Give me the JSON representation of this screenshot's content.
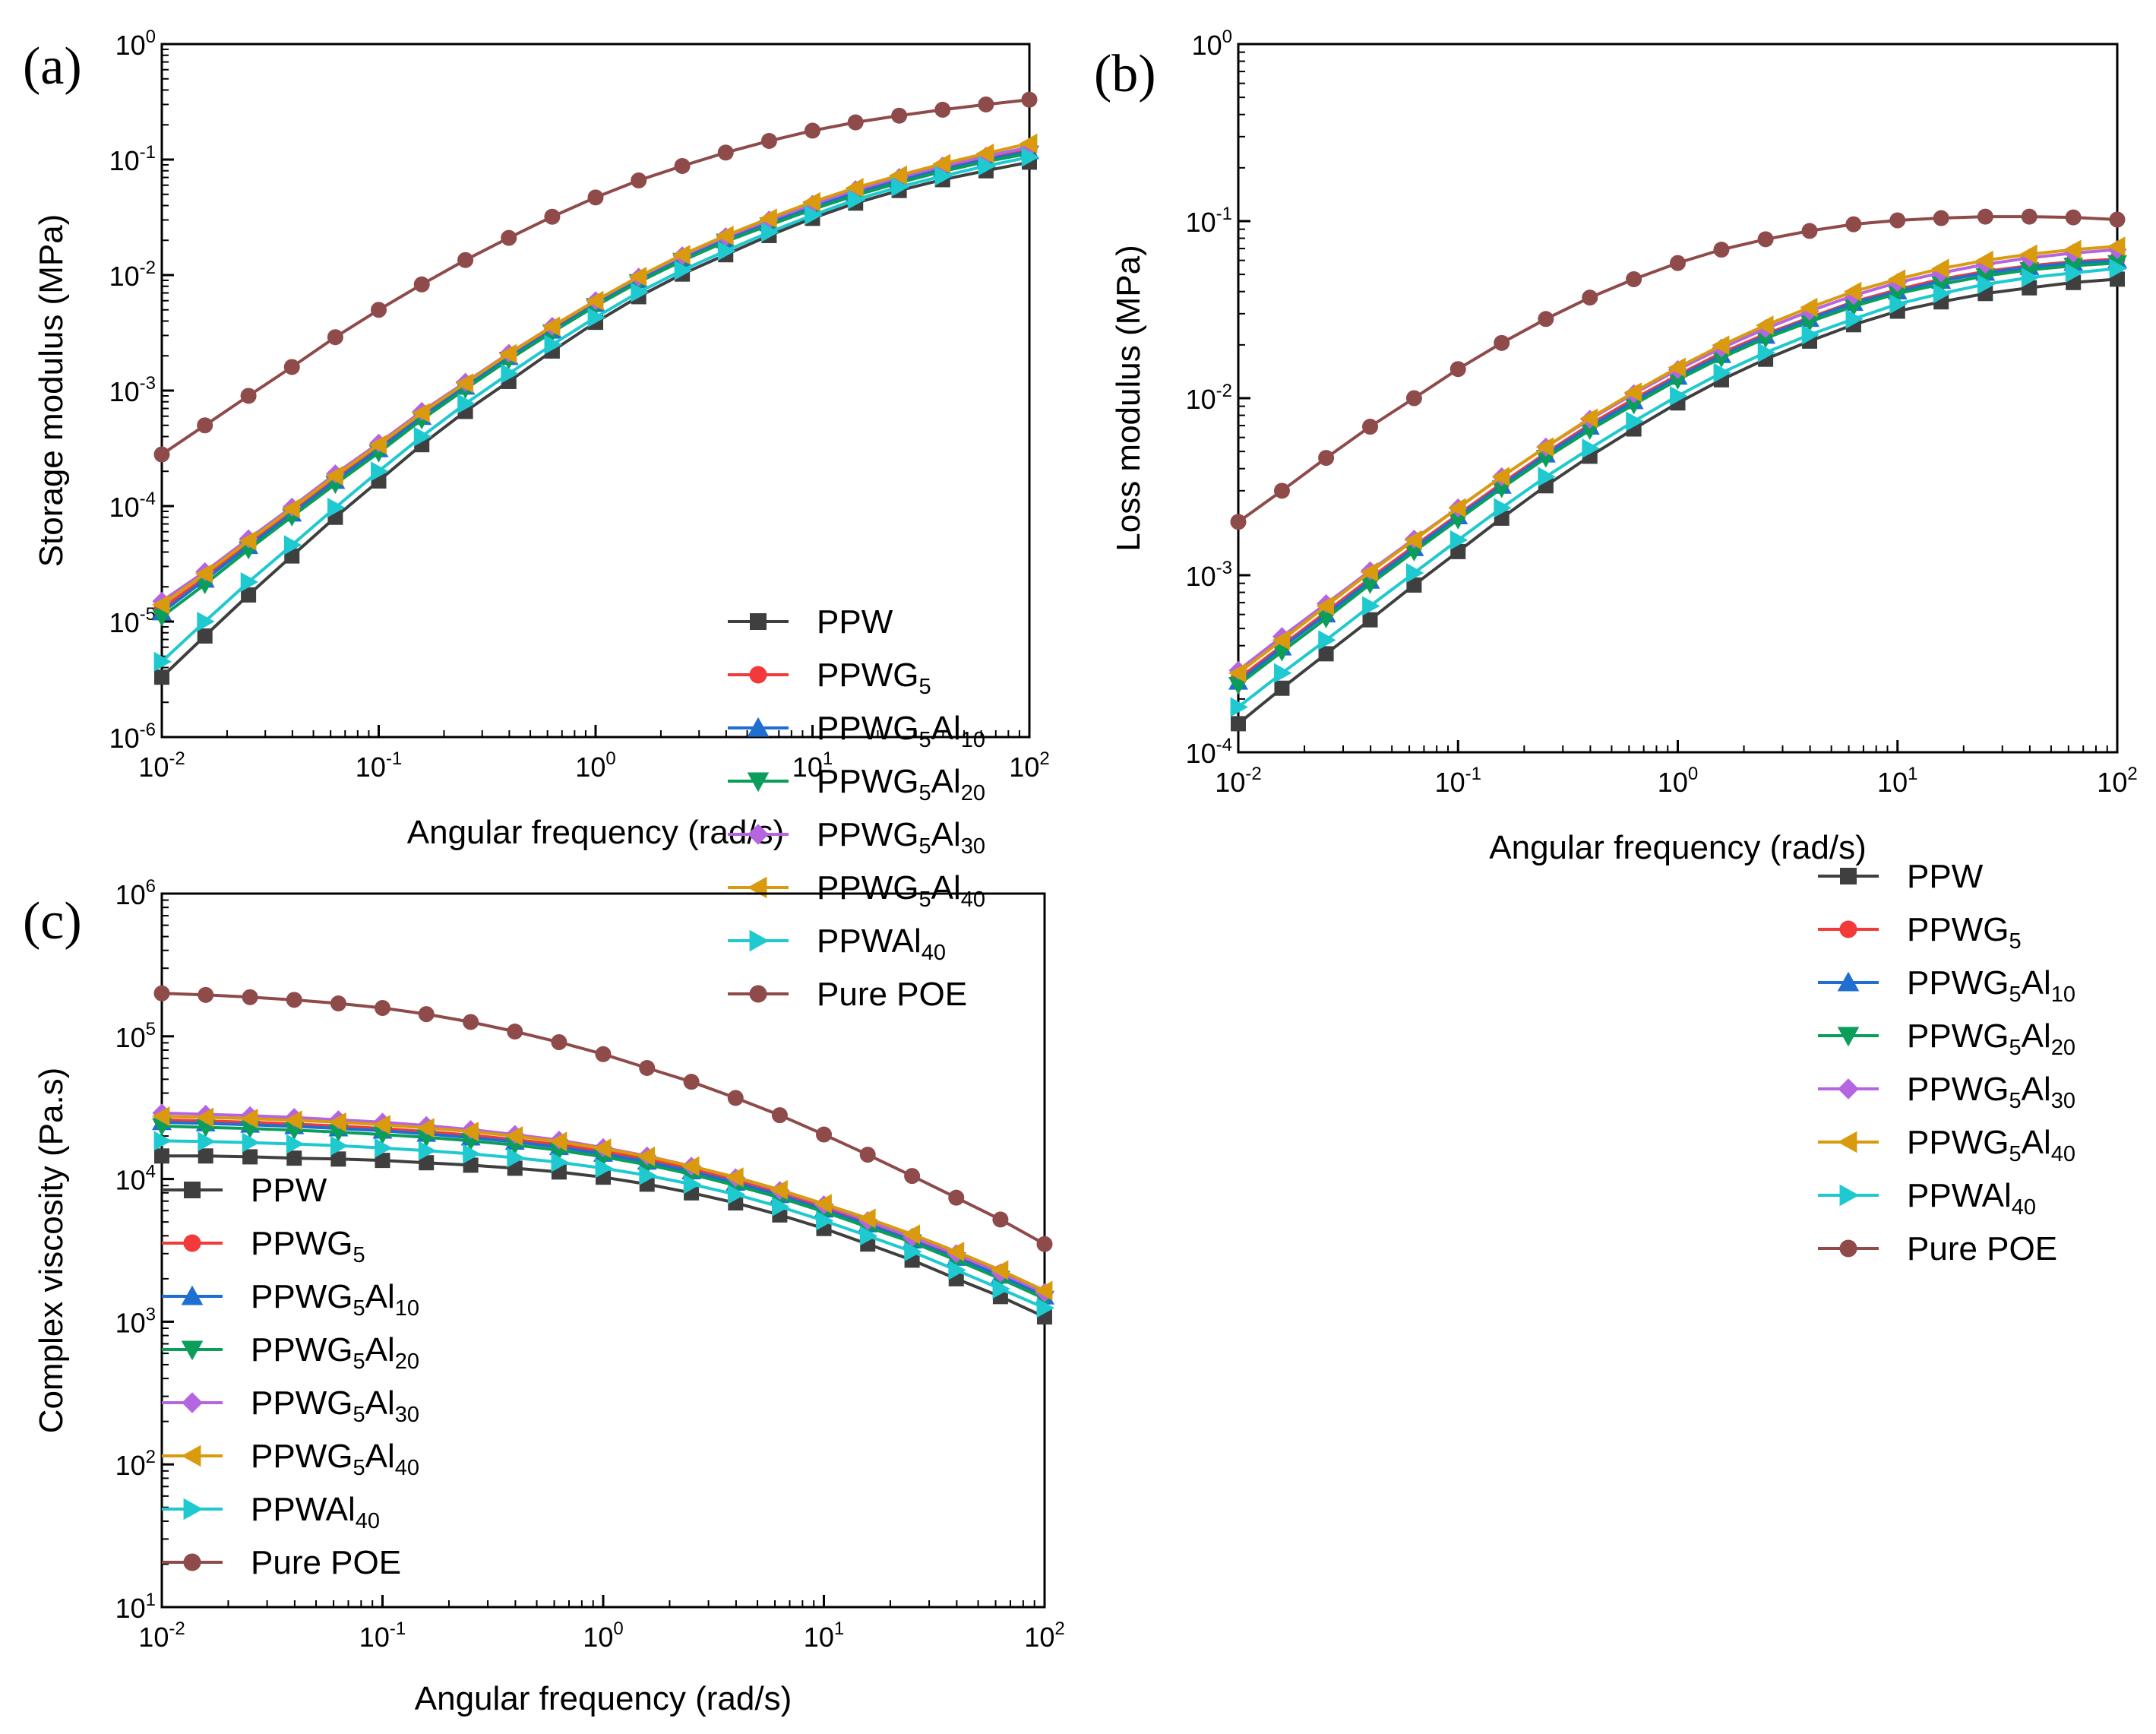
{
  "figure": {
    "series_names": [
      "PPW",
      "PPWG5",
      "PPWG5Al10",
      "PPWG5Al20",
      "PPWG5Al30",
      "PPWG5Al40",
      "PPWAl40",
      "Pure POE"
    ],
    "legend": [
      {
        "base": "PPW",
        "parts": [
          {
            "t": "PPW",
            "sub": false
          }
        ],
        "color": "#3f3f3f",
        "marker": "square"
      },
      {
        "base": "PPWG5",
        "parts": [
          {
            "t": "PPWG",
            "sub": false
          },
          {
            "t": "5",
            "sub": true
          }
        ],
        "color": "#f23a3a",
        "marker": "circle"
      },
      {
        "base": "PPWG5Al10",
        "parts": [
          {
            "t": "PPWG",
            "sub": false
          },
          {
            "t": "5",
            "sub": true
          },
          {
            "t": "Al",
            "sub": false
          },
          {
            "t": "10",
            "sub": true
          }
        ],
        "color": "#1f6fd1",
        "marker": "triangle-up"
      },
      {
        "base": "PPWG5Al20",
        "parts": [
          {
            "t": "PPWG",
            "sub": false
          },
          {
            "t": "5",
            "sub": true
          },
          {
            "t": "Al",
            "sub": false
          },
          {
            "t": "20",
            "sub": true
          }
        ],
        "color": "#0a9e5a",
        "marker": "triangle-down"
      },
      {
        "base": "PPWG5Al30",
        "parts": [
          {
            "t": "PPWG",
            "sub": false
          },
          {
            "t": "5",
            "sub": true
          },
          {
            "t": "Al",
            "sub": false
          },
          {
            "t": "30",
            "sub": true
          }
        ],
        "color": "#b565e0",
        "marker": "diamond"
      },
      {
        "base": "PPWG5Al40",
        "parts": [
          {
            "t": "PPWG",
            "sub": false
          },
          {
            "t": "5",
            "sub": true
          },
          {
            "t": "Al",
            "sub": false
          },
          {
            "t": "40",
            "sub": true
          }
        ],
        "color": "#d99a0e",
        "marker": "triangle-left"
      },
      {
        "base": "PPWAl40",
        "parts": [
          {
            "t": "PPWAl",
            "sub": false
          },
          {
            "t": "40",
            "sub": true
          }
        ],
        "color": "#1ec9d0",
        "marker": "triangle-right"
      },
      {
        "base": "Pure POE",
        "parts": [
          {
            "t": "Pure POE",
            "sub": false
          }
        ],
        "color": "#8f4a4a",
        "marker": "circle"
      }
    ]
  },
  "chart_data": [
    {
      "panel": "(a)",
      "type": "line",
      "xscale": "log",
      "yscale": "log",
      "xlabel": "Angular frequency (rad/s)",
      "ylabel": "Storage modulus (MPa)",
      "xlim": [
        0.01,
        100
      ],
      "ylim": [
        1e-06,
        1
      ],
      "xticks": [
        {
          "base": "10",
          "exp": "-2"
        },
        {
          "base": "10",
          "exp": "-1"
        },
        {
          "base": "10",
          "exp": "0"
        },
        {
          "base": "10",
          "exp": "1"
        },
        {
          "base": "10",
          "exp": "2"
        }
      ],
      "yticks": [
        {
          "base": "10",
          "exp": "-6"
        },
        {
          "base": "10",
          "exp": "-5"
        },
        {
          "base": "10",
          "exp": "-4"
        },
        {
          "base": "10",
          "exp": "-3"
        },
        {
          "base": "10",
          "exp": "-2"
        },
        {
          "base": "10",
          "exp": "-1"
        },
        {
          "base": "10",
          "exp": "0"
        }
      ],
      "x": [
        0.01,
        0.0158,
        0.0251,
        0.0398,
        0.0631,
        0.1,
        0.158,
        0.251,
        0.398,
        0.631,
        1,
        1.58,
        2.51,
        3.98,
        6.31,
        10,
        15.8,
        25.1,
        39.8,
        63.1,
        100
      ],
      "series": [
        {
          "name": "PPW",
          "values": [
            3.3e-06,
            7.5e-06,
            1.7e-05,
            3.7e-05,
            8e-05,
            0.000165,
            0.00034,
            0.00066,
            0.0012,
            0.0022,
            0.0039,
            0.0065,
            0.0102,
            0.015,
            0.022,
            0.031,
            0.042,
            0.054,
            0.067,
            0.08,
            0.095
          ]
        },
        {
          "name": "PPWG5",
          "values": [
            1.3e-05,
            2.4e-05,
            4.8e-05,
            9e-05,
            0.00017,
            0.00032,
            0.00061,
            0.0011,
            0.002,
            0.0034,
            0.0058,
            0.0093,
            0.0142,
            0.021,
            0.029,
            0.04,
            0.053,
            0.068,
            0.085,
            0.103,
            0.122
          ]
        },
        {
          "name": "PPWG5Al10",
          "values": [
            1.2e-05,
            2.3e-05,
            4.5e-05,
            8.6e-05,
            0.000165,
            0.00031,
            0.00059,
            0.00108,
            0.00195,
            0.0033,
            0.0056,
            0.009,
            0.0138,
            0.02,
            0.028,
            0.039,
            0.051,
            0.066,
            0.082,
            0.1,
            0.118
          ]
        },
        {
          "name": "PPWG5Al20",
          "values": [
            1.1e-05,
            2.1e-05,
            4.2e-05,
            8.1e-05,
            0.000155,
            0.00029,
            0.00056,
            0.00103,
            0.00185,
            0.0032,
            0.0054,
            0.0087,
            0.0133,
            0.0195,
            0.027,
            0.037,
            0.049,
            0.063,
            0.079,
            0.096,
            0.113
          ]
        },
        {
          "name": "PPWG5Al30",
          "values": [
            1.5e-05,
            2.7e-05,
            5.2e-05,
            9.8e-05,
            0.00019,
            0.00035,
            0.00066,
            0.00118,
            0.0021,
            0.0036,
            0.006,
            0.0096,
            0.0147,
            0.0215,
            0.03,
            0.041,
            0.055,
            0.07,
            0.088,
            0.107,
            0.128
          ]
        },
        {
          "name": "PPWG5Al40",
          "values": [
            1.4e-05,
            2.6e-05,
            5e-05,
            9.5e-05,
            0.000183,
            0.00034,
            0.00064,
            0.00116,
            0.00208,
            0.0036,
            0.006,
            0.0097,
            0.015,
            0.022,
            0.031,
            0.043,
            0.057,
            0.073,
            0.092,
            0.113,
            0.138
          ]
        },
        {
          "name": "PPWAl40",
          "values": [
            4.5e-06,
            1e-05,
            2.2e-05,
            4.6e-05,
            9.7e-05,
            0.0002,
            0.0004,
            0.00077,
            0.0014,
            0.0025,
            0.0043,
            0.0071,
            0.011,
            0.0162,
            0.0235,
            0.033,
            0.045,
            0.058,
            0.072,
            0.088,
            0.105
          ]
        },
        {
          "name": "Pure POE",
          "values": [
            0.00028,
            0.0005,
            0.0009,
            0.0016,
            0.0029,
            0.005,
            0.0083,
            0.0135,
            0.021,
            0.032,
            0.047,
            0.066,
            0.088,
            0.115,
            0.145,
            0.178,
            0.21,
            0.24,
            0.27,
            0.3,
            0.33
          ]
        }
      ]
    },
    {
      "panel": "(b)",
      "type": "line",
      "xscale": "log",
      "yscale": "log",
      "xlabel": "Angular frequency (rad/s)",
      "ylabel": "Loss modulus (MPa)",
      "xlim": [
        0.01,
        100
      ],
      "ylim": [
        0.0001,
        1
      ],
      "xticks": [
        {
          "base": "10",
          "exp": "-2"
        },
        {
          "base": "10",
          "exp": "-1"
        },
        {
          "base": "10",
          "exp": "0"
        },
        {
          "base": "10",
          "exp": "1"
        },
        {
          "base": "10",
          "exp": "2"
        }
      ],
      "yticks": [
        {
          "base": "10",
          "exp": "-4"
        },
        {
          "base": "10",
          "exp": "-3"
        },
        {
          "base": "10",
          "exp": "-2"
        },
        {
          "base": "10",
          "exp": "-1"
        },
        {
          "base": "10",
          "exp": "0"
        }
      ],
      "x": [
        0.01,
        0.0158,
        0.0251,
        0.0398,
        0.0631,
        0.1,
        0.158,
        0.251,
        0.398,
        0.631,
        1,
        1.58,
        2.51,
        3.98,
        6.31,
        10,
        15.8,
        25.1,
        39.8,
        63.1,
        100
      ],
      "series": [
        {
          "name": "PPW",
          "values": [
            0.000145,
            0.00023,
            0.00036,
            0.00056,
            0.00088,
            0.00136,
            0.0021,
            0.0032,
            0.0047,
            0.0067,
            0.0094,
            0.0127,
            0.0166,
            0.021,
            0.026,
            0.031,
            0.035,
            0.039,
            0.042,
            0.045,
            0.047
          ]
        },
        {
          "name": "PPWG5",
          "values": [
            0.00026,
            0.0004,
            0.00062,
            0.00096,
            0.00146,
            0.0022,
            0.0033,
            0.0049,
            0.0071,
            0.0099,
            0.0135,
            0.018,
            0.023,
            0.0285,
            0.035,
            0.041,
            0.047,
            0.052,
            0.056,
            0.059,
            0.061
          ]
        },
        {
          "name": "PPWG5Al10",
          "values": [
            0.00025,
            0.00039,
            0.0006,
            0.00093,
            0.00142,
            0.00215,
            0.0032,
            0.0048,
            0.0069,
            0.0096,
            0.0132,
            0.0175,
            0.0225,
            0.028,
            0.0345,
            0.04,
            0.046,
            0.051,
            0.055,
            0.058,
            0.06
          ]
        },
        {
          "name": "PPWG5Al20",
          "values": [
            0.00024,
            0.00037,
            0.00057,
            0.00089,
            0.00136,
            0.00206,
            0.0031,
            0.0046,
            0.0066,
            0.0092,
            0.0127,
            0.0169,
            0.0218,
            0.027,
            0.033,
            0.039,
            0.044,
            0.049,
            0.053,
            0.056,
            0.058
          ]
        },
        {
          "name": "PPWG5Al30",
          "values": [
            0.00029,
            0.00045,
            0.00069,
            0.00106,
            0.0016,
            0.0024,
            0.0036,
            0.0053,
            0.0076,
            0.0106,
            0.0145,
            0.0192,
            0.0247,
            0.031,
            0.038,
            0.045,
            0.051,
            0.057,
            0.062,
            0.066,
            0.069
          ]
        },
        {
          "name": "PPWG5Al40",
          "values": [
            0.00028,
            0.00043,
            0.00067,
            0.00104,
            0.00158,
            0.0024,
            0.0036,
            0.0053,
            0.0077,
            0.0108,
            0.0149,
            0.0199,
            0.0258,
            0.0325,
            0.04,
            0.047,
            0.054,
            0.06,
            0.065,
            0.069,
            0.072
          ]
        },
        {
          "name": "PPWAl40",
          "values": [
            0.00018,
            0.00028,
            0.00043,
            0.00067,
            0.00103,
            0.00158,
            0.0024,
            0.0036,
            0.0052,
            0.0074,
            0.0103,
            0.0139,
            0.0181,
            0.0228,
            0.028,
            0.034,
            0.039,
            0.044,
            0.048,
            0.051,
            0.054
          ]
        },
        {
          "name": "Pure POE",
          "values": [
            0.002,
            0.003,
            0.0046,
            0.0069,
            0.01,
            0.0146,
            0.0205,
            0.028,
            0.037,
            0.047,
            0.058,
            0.069,
            0.079,
            0.088,
            0.096,
            0.101,
            0.104,
            0.106,
            0.106,
            0.105,
            0.102
          ]
        }
      ]
    },
    {
      "panel": "(c)",
      "type": "line",
      "xscale": "log",
      "yscale": "log",
      "xlabel": "Angular frequency (rad/s)",
      "ylabel": "Complex viscosity (Pa.s)",
      "xlim": [
        0.01,
        100
      ],
      "ylim": [
        10,
        1000000
      ],
      "xticks": [
        {
          "base": "10",
          "exp": "-2"
        },
        {
          "base": "10",
          "exp": "-1"
        },
        {
          "base": "10",
          "exp": "0"
        },
        {
          "base": "10",
          "exp": "1"
        },
        {
          "base": "10",
          "exp": "2"
        }
      ],
      "yticks": [
        {
          "base": "10",
          "exp": "1"
        },
        {
          "base": "10",
          "exp": "2"
        },
        {
          "base": "10",
          "exp": "3"
        },
        {
          "base": "10",
          "exp": "4"
        },
        {
          "base": "10",
          "exp": "5"
        },
        {
          "base": "10",
          "exp": "6"
        }
      ],
      "x": [
        0.01,
        0.0158,
        0.0251,
        0.0398,
        0.0631,
        0.1,
        0.158,
        0.251,
        0.398,
        0.631,
        1,
        1.58,
        2.51,
        3.98,
        6.31,
        10,
        15.8,
        25.1,
        39.8,
        63.1,
        100
      ],
      "series": [
        {
          "name": "PPW",
          "values": [
            14500,
            14500,
            14300,
            14000,
            13800,
            13500,
            13000,
            12500,
            11900,
            11200,
            10300,
            9200,
            8000,
            6800,
            5600,
            4500,
            3500,
            2700,
            2000,
            1500,
            1080
          ]
        },
        {
          "name": "PPWG5",
          "values": [
            26000,
            25500,
            25000,
            24300,
            23500,
            22600,
            21500,
            20300,
            18900,
            17400,
            15600,
            13800,
            11800,
            9800,
            8000,
            6400,
            5000,
            3800,
            2900,
            2200,
            1550
          ]
        },
        {
          "name": "PPWG5Al10",
          "values": [
            25000,
            24500,
            24000,
            23400,
            22600,
            21800,
            20700,
            19500,
            18200,
            16700,
            15000,
            13200,
            11300,
            9400,
            7700,
            6100,
            4800,
            3700,
            2800,
            2100,
            1500
          ]
        },
        {
          "name": "PPWG5Al20",
          "values": [
            23500,
            23000,
            22600,
            22000,
            21300,
            20500,
            19600,
            18500,
            17300,
            15900,
            14300,
            12600,
            10800,
            9000,
            7400,
            5900,
            4600,
            3600,
            2700,
            2000,
            1450
          ]
        },
        {
          "name": "PPWG5Al30",
          "values": [
            29000,
            28400,
            27800,
            27000,
            26000,
            25000,
            23700,
            22200,
            20500,
            18700,
            16600,
            14500,
            12300,
            10200,
            8300,
            6600,
            5100,
            3900,
            3000,
            2200,
            1600
          ]
        },
        {
          "name": "PPWG5Al40",
          "values": [
            27500,
            27000,
            26500,
            25800,
            25000,
            24000,
            22800,
            21500,
            20000,
            18300,
            16400,
            14400,
            12300,
            10300,
            8400,
            6700,
            5300,
            4100,
            3100,
            2300,
            1650
          ]
        },
        {
          "name": "PPWAl40",
          "values": [
            18500,
            18300,
            18000,
            17600,
            17100,
            16500,
            15800,
            15000,
            14100,
            13100,
            11900,
            10600,
            9200,
            7800,
            6400,
            5100,
            4000,
            3100,
            2300,
            1700,
            1250
          ]
        },
        {
          "name": "Pure POE",
          "values": [
            200000,
            195000,
            188000,
            180000,
            170000,
            158000,
            143000,
            126000,
            108000,
            91000,
            75000,
            60000,
            48000,
            37000,
            28000,
            20500,
            14800,
            10500,
            7400,
            5200,
            3500
          ]
        }
      ]
    }
  ]
}
